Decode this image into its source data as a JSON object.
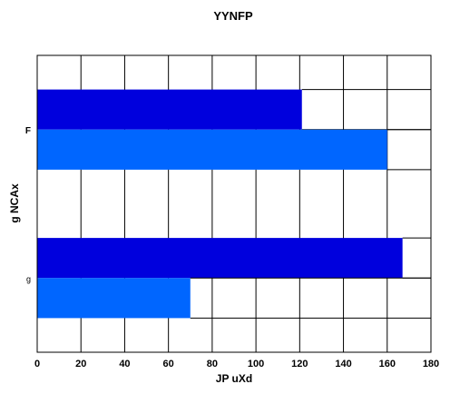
{
  "chart_data": {
    "type": "bar",
    "orientation": "horizontal",
    "title": "YYNFP",
    "xlabel": "JP uXd",
    "ylabel": "g NCAx",
    "categories": [
      "F",
      "g"
    ],
    "series": [
      {
        "color": "#0000dd",
        "values": [
          121,
          167
        ]
      },
      {
        "color": "#0066ff",
        "values": [
          160,
          70
        ]
      }
    ],
    "xlim": [
      0,
      180
    ],
    "xticks": [
      "0",
      "20",
      "40",
      "60",
      "80",
      "100",
      "120",
      "140",
      "160",
      "180"
    ],
    "grid": true
  }
}
